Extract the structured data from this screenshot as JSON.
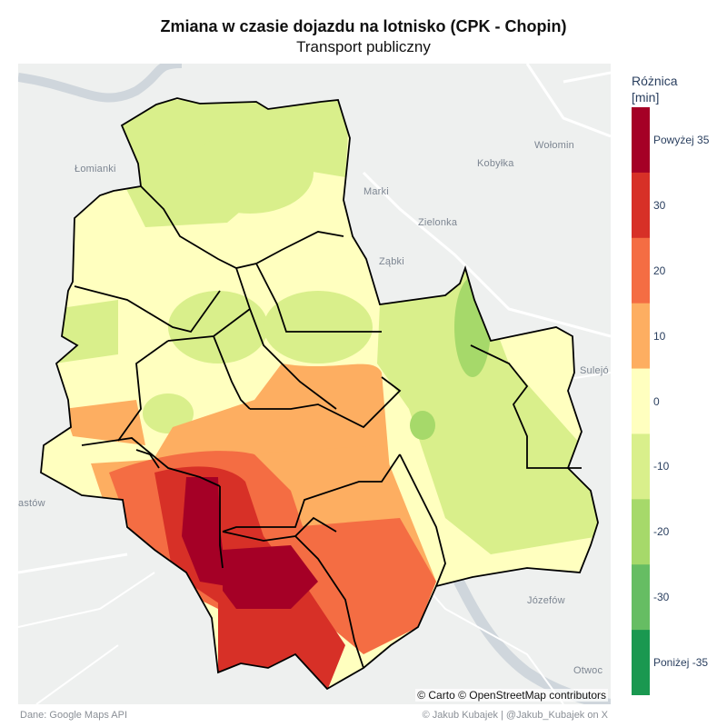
{
  "title": "Zmiana w czasie dojazdu na lotnisko (CPK - Chopin)",
  "subtitle": "Transport publiczny",
  "map": {
    "places": [
      "Łomianki",
      "Marki",
      "Kobyłka",
      "Wołomin",
      "Zielonka",
      "Ząbki",
      "Sulejó",
      "astów",
      "Józefów",
      "Otwoc"
    ],
    "attribution": "© Carto © OpenStreetMap contributors",
    "basemap_color": "#eef0ef",
    "border_color": "#000000"
  },
  "legend": {
    "title_line1": "Różnica",
    "title_line2": "[min]",
    "bands": [
      {
        "from": 35,
        "to": 45,
        "color": "#a50026",
        "label": "Powyżej 35"
      },
      {
        "from": 25,
        "to": 35,
        "color": "#d73027",
        "label": "30"
      },
      {
        "from": 15,
        "to": 25,
        "color": "#f46d43",
        "label": "20"
      },
      {
        "from": 5,
        "to": 15,
        "color": "#fdae61",
        "label": "10"
      },
      {
        "from": -5,
        "to": 5,
        "color": "#ffffbf",
        "label": "0"
      },
      {
        "from": -15,
        "to": -5,
        "color": "#d9ef8b",
        "label": "-10"
      },
      {
        "from": -25,
        "to": -15,
        "color": "#a6d96a",
        "label": "-20"
      },
      {
        "from": -35,
        "to": -25,
        "color": "#66bd63",
        "label": "-30"
      },
      {
        "from": -45,
        "to": -35,
        "color": "#1a9850",
        "label": "Poniżej -35"
      }
    ]
  },
  "footer": {
    "source": "Dane: Google Maps API",
    "credit": "© Jakub Kubajek | @Jakub_Kubajek on X"
  }
}
